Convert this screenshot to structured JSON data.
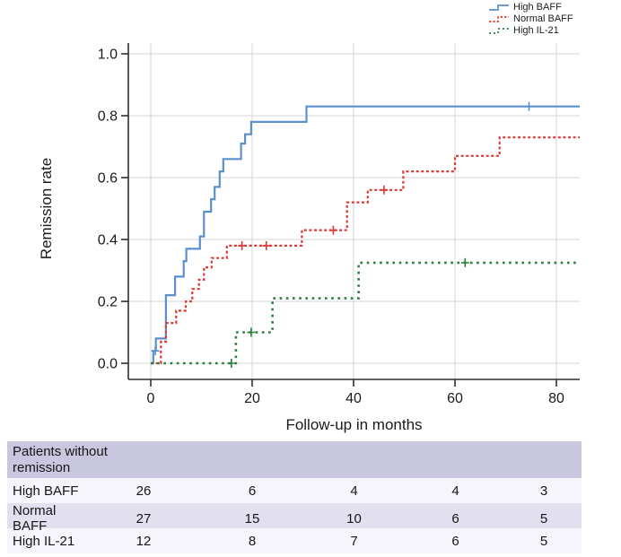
{
  "chart_data": {
    "type": "line",
    "subtype": "kaplan-meier-step",
    "title": "",
    "xlabel": "Follow-up in months",
    "ylabel": "Remission rate",
    "x_ticks": [
      0,
      20,
      40,
      60,
      80
    ],
    "y_ticks": [
      "0.0",
      "0.2",
      "0.4",
      "0.6",
      "0.8",
      "1.0"
    ],
    "xlim": [
      -4.4,
      84.8
    ],
    "ylim": [
      -0.05,
      1.05
    ],
    "grid": true,
    "legend_position": "top-right",
    "colors": {
      "grid": "#d6d6d6",
      "axis": "#2e2e2e",
      "tick_text": "#1a1a1a"
    },
    "series": [
      {
        "name": "High BAFF",
        "color": "#5b8fce",
        "style": "solid",
        "steps": [
          [
            0,
            0
          ],
          [
            0.5,
            0.04
          ],
          [
            1,
            0.08
          ],
          [
            3,
            0.22
          ],
          [
            4.8,
            0.28
          ],
          [
            6.5,
            0.33
          ],
          [
            7,
            0.37
          ],
          [
            9.7,
            0.41
          ],
          [
            10.5,
            0.49
          ],
          [
            11.9,
            0.53
          ],
          [
            12.6,
            0.57
          ],
          [
            13.6,
            0.62
          ],
          [
            14.3,
            0.66
          ],
          [
            17.8,
            0.71
          ],
          [
            18.6,
            0.74
          ],
          [
            19.8,
            0.78
          ],
          [
            30.7,
            0.83
          ],
          [
            84.6,
            0.83
          ]
        ],
        "censor_marks": [
          [
            0.9,
            0.04
          ],
          [
            74.6,
            0.83
          ]
        ]
      },
      {
        "name": "Normal BAFF",
        "color": "#d93a34",
        "style": "dashed",
        "steps": [
          [
            0,
            0
          ],
          [
            2,
            0.07
          ],
          [
            3,
            0.13
          ],
          [
            5,
            0.17
          ],
          [
            6.9,
            0.2
          ],
          [
            8.2,
            0.24
          ],
          [
            9.5,
            0.27
          ],
          [
            10.5,
            0.31
          ],
          [
            12,
            0.34
          ],
          [
            15,
            0.38
          ],
          [
            29.8,
            0.43
          ],
          [
            38.7,
            0.52
          ],
          [
            42.8,
            0.56
          ],
          [
            49.8,
            0.62
          ],
          [
            60,
            0.67
          ],
          [
            68.8,
            0.73
          ],
          [
            84.6,
            0.73
          ]
        ],
        "censor_marks": [
          [
            18,
            0.38
          ],
          [
            22.8,
            0.38
          ],
          [
            36,
            0.43
          ],
          [
            46,
            0.56
          ]
        ]
      },
      {
        "name": "High IL-21",
        "color": "#2e7d3c",
        "style": "dotted",
        "steps": [
          [
            0,
            0
          ],
          [
            16.8,
            0.1
          ],
          [
            24,
            0.21
          ],
          [
            41,
            0.325
          ],
          [
            84.6,
            0.325
          ]
        ],
        "censor_marks": [
          [
            15.9,
            0
          ],
          [
            19.8,
            0.1
          ],
          [
            62,
            0.325
          ]
        ]
      }
    ]
  },
  "risk_table": {
    "title": "Patients without remission",
    "columns_at_months": [
      0,
      20,
      40,
      60,
      80
    ],
    "rows": [
      {
        "label": "High BAFF",
        "values": [
          "26",
          "6",
          "4",
          "4",
          "3"
        ]
      },
      {
        "label": "Normal BAFF",
        "values": [
          "27",
          "15",
          "10",
          "6",
          "5"
        ]
      },
      {
        "label": "High IL-21",
        "values": [
          "12",
          "8",
          "7",
          "6",
          "5"
        ]
      }
    ],
    "colors": {
      "header_bg": "#c9c6df",
      "row_light": "#f6f5fb",
      "row_shaded": "#e2e0ee"
    }
  }
}
